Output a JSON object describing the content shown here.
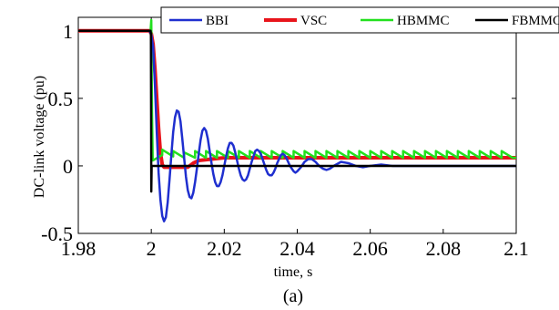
{
  "chart_data": {
    "type": "line",
    "xlabel": "time, s",
    "ylabel": "DC-link voltage (pu)",
    "caption": "(a)",
    "xlim": [
      1.98,
      2.1
    ],
    "ylim": [
      -0.5,
      1.1
    ],
    "x_ticks": [
      1.98,
      2,
      2.02,
      2.04,
      2.06,
      2.08,
      2.1
    ],
    "x_tick_labels": [
      "1.98",
      "2",
      "2.02",
      "2.04",
      "2.06",
      "2.08",
      "2.1"
    ],
    "y_ticks": [
      -0.5,
      0,
      0.5,
      1
    ],
    "y_tick_labels": [
      "-0.5",
      "0",
      "0.5",
      "1"
    ],
    "grid": false,
    "legend_position": "top-right",
    "series": [
      {
        "name": "BBI",
        "color": "#1f2fcf",
        "points": [
          [
            1.98,
            1
          ],
          [
            1.9995,
            1
          ],
          [
            2.0,
            0.97
          ],
          [
            2.0005,
            0.88
          ],
          [
            2.001,
            0.6
          ],
          [
            2.0015,
            0.25
          ],
          [
            2.002,
            -0.05
          ],
          [
            2.0025,
            -0.25
          ],
          [
            2.003,
            -0.37
          ],
          [
            2.0035,
            -0.41
          ],
          [
            2.004,
            -0.38
          ],
          [
            2.0045,
            -0.27
          ],
          [
            2.005,
            -0.1
          ],
          [
            2.0055,
            0.08
          ],
          [
            2.006,
            0.25
          ],
          [
            2.0065,
            0.36
          ],
          [
            2.007,
            0.41
          ],
          [
            2.0075,
            0.4
          ],
          [
            2.008,
            0.33
          ],
          [
            2.0085,
            0.2
          ],
          [
            2.009,
            0.06
          ],
          [
            2.0095,
            -0.08
          ],
          [
            2.01,
            -0.18
          ],
          [
            2.0105,
            -0.23
          ],
          [
            2.011,
            -0.24
          ],
          [
            2.0115,
            -0.2
          ],
          [
            2.012,
            -0.12
          ],
          [
            2.0125,
            -0.02
          ],
          [
            2.013,
            0.09
          ],
          [
            2.0135,
            0.19
          ],
          [
            2.014,
            0.26
          ],
          [
            2.0145,
            0.28
          ],
          [
            2.015,
            0.26
          ],
          [
            2.0155,
            0.2
          ],
          [
            2.016,
            0.11
          ],
          [
            2.0165,
            0.02
          ],
          [
            2.017,
            -0.06
          ],
          [
            2.0175,
            -0.12
          ],
          [
            2.018,
            -0.15
          ],
          [
            2.0185,
            -0.15
          ],
          [
            2.019,
            -0.12
          ],
          [
            2.0195,
            -0.07
          ],
          [
            2.02,
            0.0
          ],
          [
            2.0205,
            0.07
          ],
          [
            2.021,
            0.13
          ],
          [
            2.0215,
            0.17
          ],
          [
            2.022,
            0.17
          ],
          [
            2.0225,
            0.15
          ],
          [
            2.023,
            0.1
          ],
          [
            2.0235,
            0.04
          ],
          [
            2.024,
            -0.02
          ],
          [
            2.0245,
            -0.07
          ],
          [
            2.025,
            -0.1
          ],
          [
            2.0255,
            -0.11
          ],
          [
            2.026,
            -0.1
          ],
          [
            2.0265,
            -0.07
          ],
          [
            2.027,
            -0.02
          ],
          [
            2.0275,
            0.03
          ],
          [
            2.028,
            0.07
          ],
          [
            2.0285,
            0.11
          ],
          [
            2.029,
            0.12
          ],
          [
            2.0295,
            0.11
          ],
          [
            2.03,
            0.09
          ],
          [
            2.0305,
            0.05
          ],
          [
            2.031,
            0.01
          ],
          [
            2.0315,
            -0.03
          ],
          [
            2.032,
            -0.06
          ],
          [
            2.0325,
            -0.07
          ],
          [
            2.033,
            -0.07
          ],
          [
            2.0335,
            -0.05
          ],
          [
            2.034,
            -0.02
          ],
          [
            2.0345,
            0.02
          ],
          [
            2.035,
            0.05
          ],
          [
            2.0355,
            0.08
          ],
          [
            2.036,
            0.09
          ],
          [
            2.0365,
            0.08
          ],
          [
            2.037,
            0.06
          ],
          [
            2.0375,
            0.03
          ],
          [
            2.038,
            0.0
          ],
          [
            2.0385,
            -0.02
          ],
          [
            2.039,
            -0.04
          ],
          [
            2.0395,
            -0.05
          ],
          [
            2.04,
            -0.04
          ],
          [
            2.041,
            -0.01
          ],
          [
            2.042,
            0.03
          ],
          [
            2.043,
            0.05
          ],
          [
            2.044,
            0.05
          ],
          [
            2.045,
            0.03
          ],
          [
            2.046,
            0.0
          ],
          [
            2.047,
            -0.02
          ],
          [
            2.048,
            -0.03
          ],
          [
            2.049,
            -0.02
          ],
          [
            2.05,
            0.0
          ],
          [
            2.052,
            0.03
          ],
          [
            2.054,
            0.02
          ],
          [
            2.056,
            0.0
          ],
          [
            2.058,
            -0.01
          ],
          [
            2.06,
            0.0
          ],
          [
            2.063,
            0.01
          ],
          [
            2.066,
            0.0
          ],
          [
            2.07,
            0.0
          ],
          [
            2.08,
            0.0
          ],
          [
            2.1,
            0.0
          ]
        ]
      },
      {
        "name": "VSC",
        "color": "#e8141b",
        "points": [
          [
            1.98,
            1
          ],
          [
            1.9995,
            1
          ],
          [
            2.0,
            0.98
          ],
          [
            2.0005,
            0.9
          ],
          [
            2.001,
            0.72
          ],
          [
            2.0015,
            0.5
          ],
          [
            2.002,
            0.28
          ],
          [
            2.0025,
            0.1
          ],
          [
            2.003,
            0.01
          ],
          [
            2.0035,
            -0.01
          ],
          [
            2.01,
            -0.01
          ],
          [
            2.0115,
            0.02
          ],
          [
            2.013,
            0.04
          ],
          [
            2.02,
            0.06
          ],
          [
            2.1,
            0.06
          ]
        ]
      },
      {
        "name": "HBMMC",
        "color": "#22e01e",
        "points": [
          [
            1.98,
            1
          ],
          [
            1.9998,
            1
          ],
          [
            2.0,
            1.08
          ],
          [
            2.0002,
            0.4
          ],
          [
            2.0004,
            0.04
          ],
          [
            2.003,
            0.08
          ],
          [
            2.003,
            0.12
          ],
          [
            2.006,
            0.07
          ],
          [
            2.006,
            0.11
          ],
          [
            2.009,
            0.06
          ],
          [
            2.009,
            0.1
          ],
          [
            2.012,
            0.06
          ],
          [
            2.012,
            0.11
          ],
          [
            2.015,
            0.06
          ],
          [
            2.015,
            0.11
          ],
          [
            2.018,
            0.06
          ],
          [
            2.018,
            0.11
          ],
          [
            2.021,
            0.06
          ],
          [
            2.021,
            0.11
          ],
          [
            2.024,
            0.06
          ],
          [
            2.024,
            0.11
          ],
          [
            2.027,
            0.06
          ],
          [
            2.027,
            0.11
          ],
          [
            2.03,
            0.06
          ],
          [
            2.03,
            0.11
          ],
          [
            2.033,
            0.06
          ],
          [
            2.033,
            0.11
          ],
          [
            2.036,
            0.06
          ],
          [
            2.036,
            0.11
          ],
          [
            2.039,
            0.06
          ],
          [
            2.039,
            0.11
          ],
          [
            2.042,
            0.06
          ],
          [
            2.042,
            0.11
          ],
          [
            2.045,
            0.06
          ],
          [
            2.045,
            0.11
          ],
          [
            2.048,
            0.06
          ],
          [
            2.048,
            0.11
          ],
          [
            2.051,
            0.06
          ],
          [
            2.051,
            0.11
          ],
          [
            2.054,
            0.06
          ],
          [
            2.054,
            0.11
          ],
          [
            2.057,
            0.06
          ],
          [
            2.057,
            0.11
          ],
          [
            2.06,
            0.06
          ],
          [
            2.06,
            0.11
          ],
          [
            2.063,
            0.06
          ],
          [
            2.063,
            0.11
          ],
          [
            2.066,
            0.06
          ],
          [
            2.066,
            0.11
          ],
          [
            2.069,
            0.06
          ],
          [
            2.069,
            0.11
          ],
          [
            2.072,
            0.06
          ],
          [
            2.072,
            0.11
          ],
          [
            2.075,
            0.06
          ],
          [
            2.075,
            0.11
          ],
          [
            2.078,
            0.06
          ],
          [
            2.078,
            0.11
          ],
          [
            2.081,
            0.06
          ],
          [
            2.081,
            0.11
          ],
          [
            2.084,
            0.06
          ],
          [
            2.084,
            0.11
          ],
          [
            2.087,
            0.06
          ],
          [
            2.087,
            0.11
          ],
          [
            2.09,
            0.06
          ],
          [
            2.09,
            0.11
          ],
          [
            2.093,
            0.06
          ],
          [
            2.093,
            0.11
          ],
          [
            2.096,
            0.06
          ],
          [
            2.096,
            0.11
          ],
          [
            2.099,
            0.06
          ],
          [
            2.1,
            0.06
          ]
        ]
      },
      {
        "name": "FBMMC",
        "color": "#000000",
        "points": [
          [
            1.98,
            1
          ],
          [
            1.9998,
            1
          ],
          [
            1.9999,
            0.98
          ],
          [
            2.0,
            -0.19
          ],
          [
            2.0001,
            0.0
          ],
          [
            2.1,
            0.0
          ]
        ]
      }
    ]
  }
}
